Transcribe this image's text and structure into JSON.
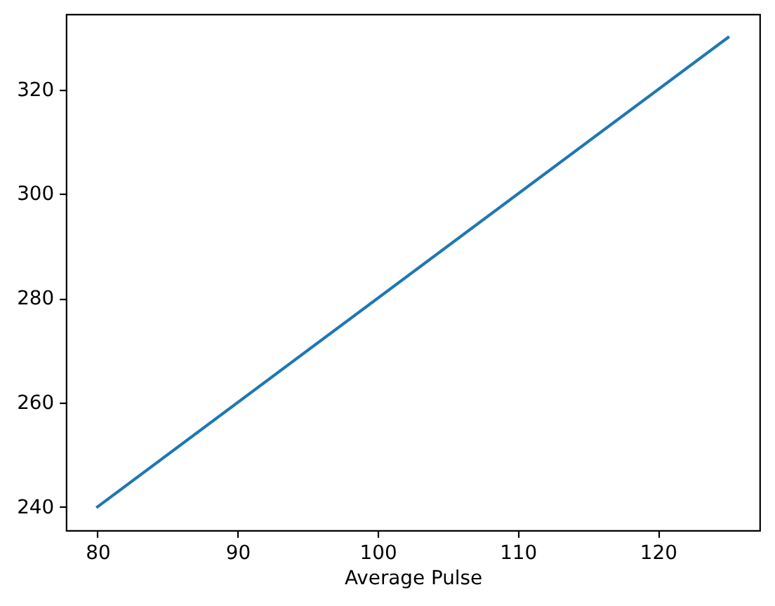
{
  "chart_data": {
    "type": "line",
    "xlabel": "Average Pulse",
    "x": [
      80,
      125
    ],
    "values": [
      240,
      330
    ],
    "color": "#1f77b4",
    "xlim": [
      77.75,
      127.25
    ],
    "ylim": [
      235.5,
      334.5
    ],
    "xticks": [
      80,
      90,
      100,
      110,
      120
    ],
    "yticks": [
      240,
      260,
      280,
      300,
      320
    ]
  }
}
